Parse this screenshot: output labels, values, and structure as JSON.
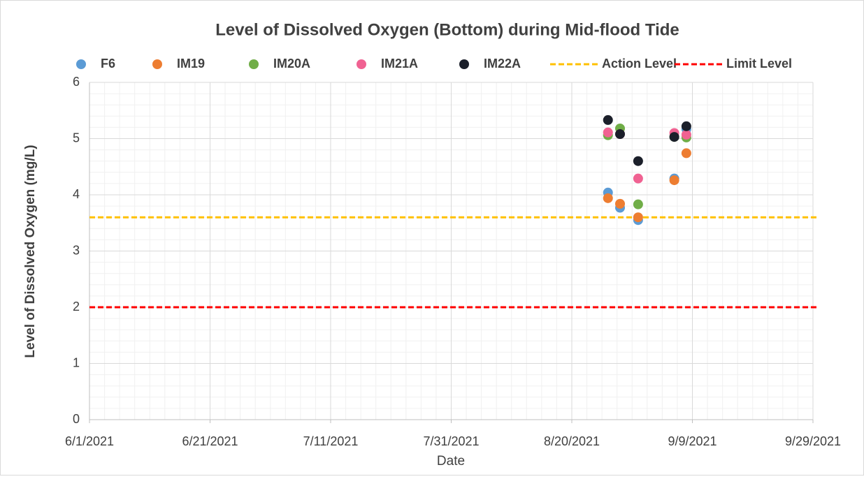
{
  "chart_data": {
    "type": "scatter",
    "title": "Level of Dissolved Oxygen (Bottom) during Mid-flood Tide",
    "xlabel": "Date",
    "ylabel": "Level of Dissolved Oxygen (mg/L)",
    "x": [
      "8/26/2021",
      "8/28/2021",
      "8/31/2021",
      "9/6/2021",
      "9/8/2021"
    ],
    "series": [
      {
        "name": "F6",
        "color": "#5b9bd5",
        "values": [
          4.04,
          3.77,
          3.55,
          4.29,
          5.17
        ]
      },
      {
        "name": "IM19",
        "color": "#ed7d31",
        "values": [
          3.94,
          3.84,
          3.6,
          4.26,
          4.74
        ]
      },
      {
        "name": "IM20A",
        "color": "#70ad47",
        "values": [
          5.06,
          5.18,
          3.83,
          5.03,
          5.02
        ]
      },
      {
        "name": "IM21A",
        "color": "#f06292",
        "values": [
          5.11,
          5.08,
          4.29,
          5.1,
          5.07
        ]
      },
      {
        "name": "IM22A",
        "color": "#1b1f2a",
        "values": [
          5.33,
          5.08,
          4.6,
          5.03,
          5.22
        ]
      }
    ],
    "hlines": [
      {
        "name": "Action Level",
        "value": 3.6,
        "color": "#ffc000"
      },
      {
        "name": "Limit Level",
        "value": 2,
        "color": "#ff0000"
      }
    ],
    "xlim": [
      "6/1/2021",
      "9/29/2021"
    ],
    "xticks": [
      "6/1/2021",
      "6/21/2021",
      "7/11/2021",
      "7/31/2021",
      "8/20/2021",
      "9/9/2021",
      "9/29/2021"
    ],
    "ylim": [
      0,
      6
    ],
    "yticks": [
      0,
      1,
      2,
      3,
      4,
      5,
      6
    ],
    "grid": true,
    "legend": "top"
  }
}
